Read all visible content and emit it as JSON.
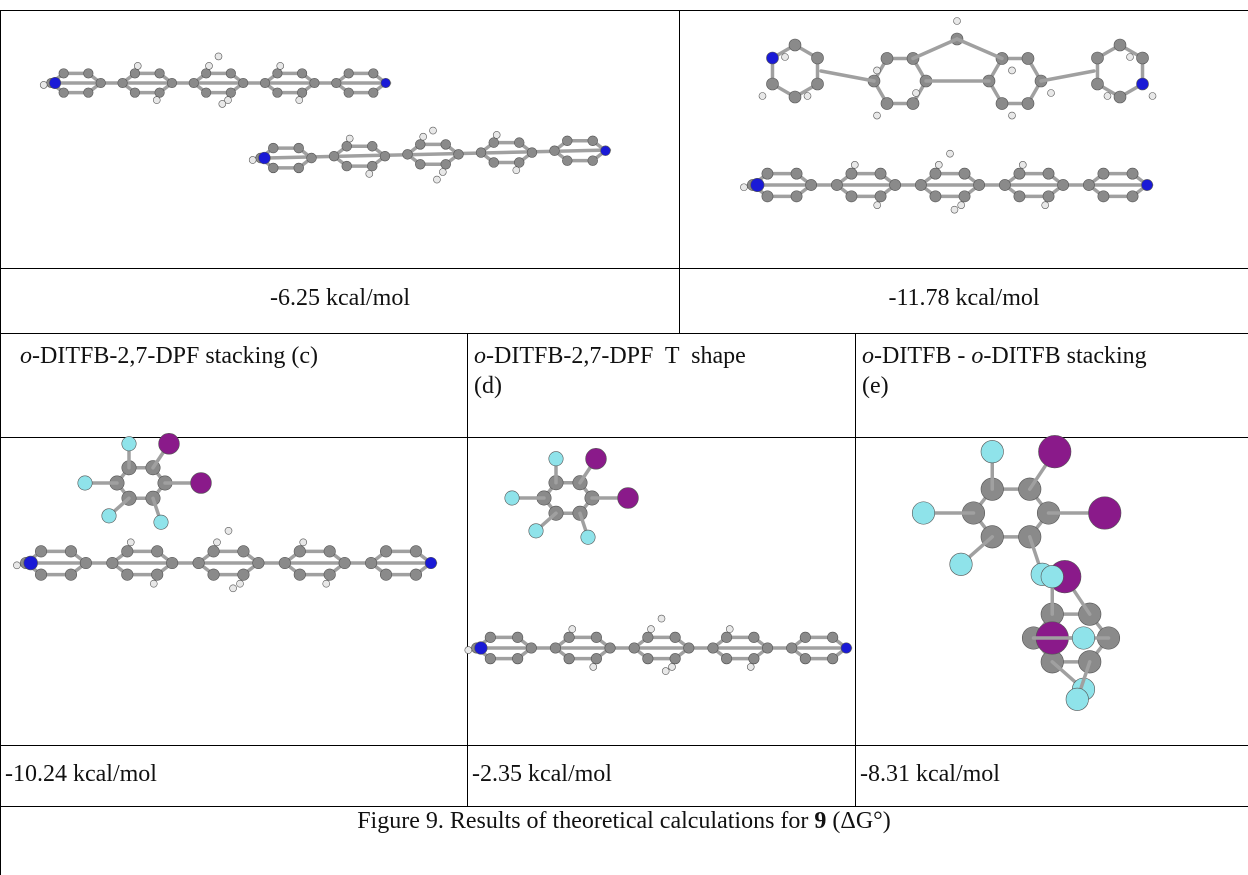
{
  "energies": {
    "a": "-6.25 kcal/mol",
    "b": "-11.78 kcal/mol",
    "c": "-10.24 kcal/mol",
    "d": "-2.35 kcal/mol",
    "e": "-8.31 kcal/mol"
  },
  "labels": {
    "c_prefix": "o",
    "c_rest": "-DITFB-2,7-DPF stacking (c)",
    "d_prefix": "o",
    "d_line1": "-DITFB-2,7-DPF  T  shape",
    "d_line2": "(d)",
    "e_prefix1": "o",
    "e_mid": "-DITFB - ",
    "e_prefix2": "o",
    "e_rest": "-DITFB stacking",
    "e_line2": "(e)"
  },
  "caption": {
    "text": "Figure 9. Results of theoretical calculations for ",
    "compound": "9",
    "tail": " (ΔG°)"
  },
  "colors": {
    "carbon": "#8a8a8a",
    "hydrogen": "#e8e8e8",
    "nitrogen": "#1a1ad6",
    "fluorine": "#8fe3ea",
    "iodine": "#8a1a8a",
    "bond": "#a0a0a0"
  }
}
